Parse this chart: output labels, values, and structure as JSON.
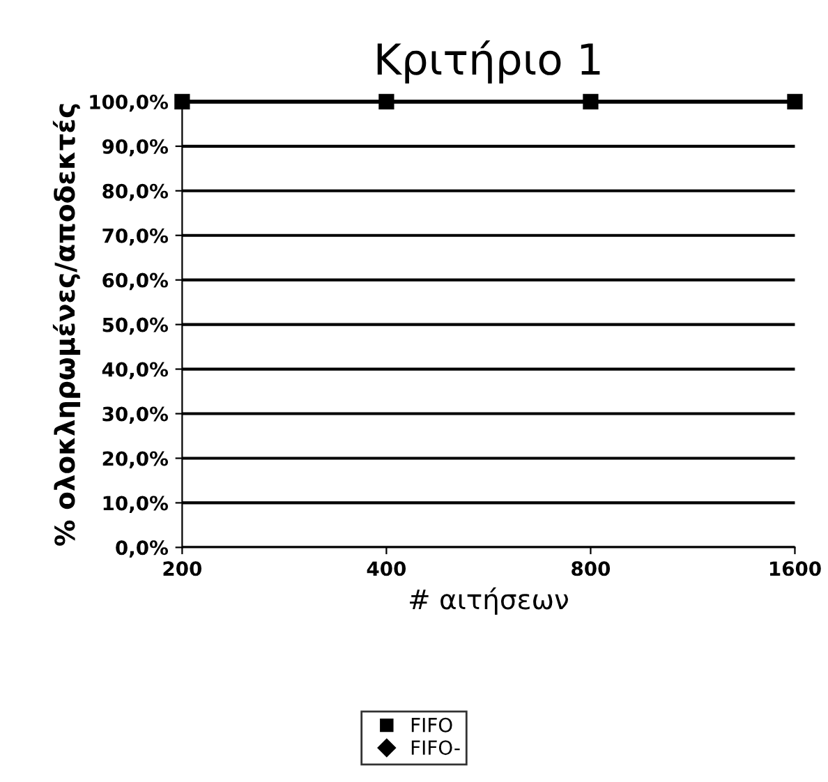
{
  "chart_data": {
    "type": "line",
    "title": "Κριτήριο 1",
    "xlabel": "# αιτήσεων",
    "ylabel": "% ολοκληρωμένες/αποδεκτές",
    "categories": [
      "200",
      "400",
      "800",
      "1600"
    ],
    "series": [
      {
        "name": "FIFO",
        "color": "#000000",
        "marker": "square",
        "values": [
          100,
          100,
          100,
          100
        ]
      },
      {
        "name": "FIFO-",
        "color": "#000000",
        "marker": "diamond",
        "values": [
          null,
          null,
          null,
          null
        ]
      }
    ],
    "ylim": [
      0,
      100
    ],
    "yticks": [
      {
        "value": 0,
        "label": "0,0%"
      },
      {
        "value": 10,
        "label": "10,0%"
      },
      {
        "value": 20,
        "label": "20,0%"
      },
      {
        "value": 30,
        "label": "30,0%"
      },
      {
        "value": 40,
        "label": "40,0%"
      },
      {
        "value": 50,
        "label": "50,0%"
      },
      {
        "value": 60,
        "label": "60,0%"
      },
      {
        "value": 70,
        "label": "70,0%"
      },
      {
        "value": 80,
        "label": "80,0%"
      },
      {
        "value": 90,
        "label": "90,0%"
      },
      {
        "value": 100,
        "label": "100,0%"
      }
    ],
    "grid": "y",
    "legend": "bottom",
    "line_style": "solid"
  }
}
